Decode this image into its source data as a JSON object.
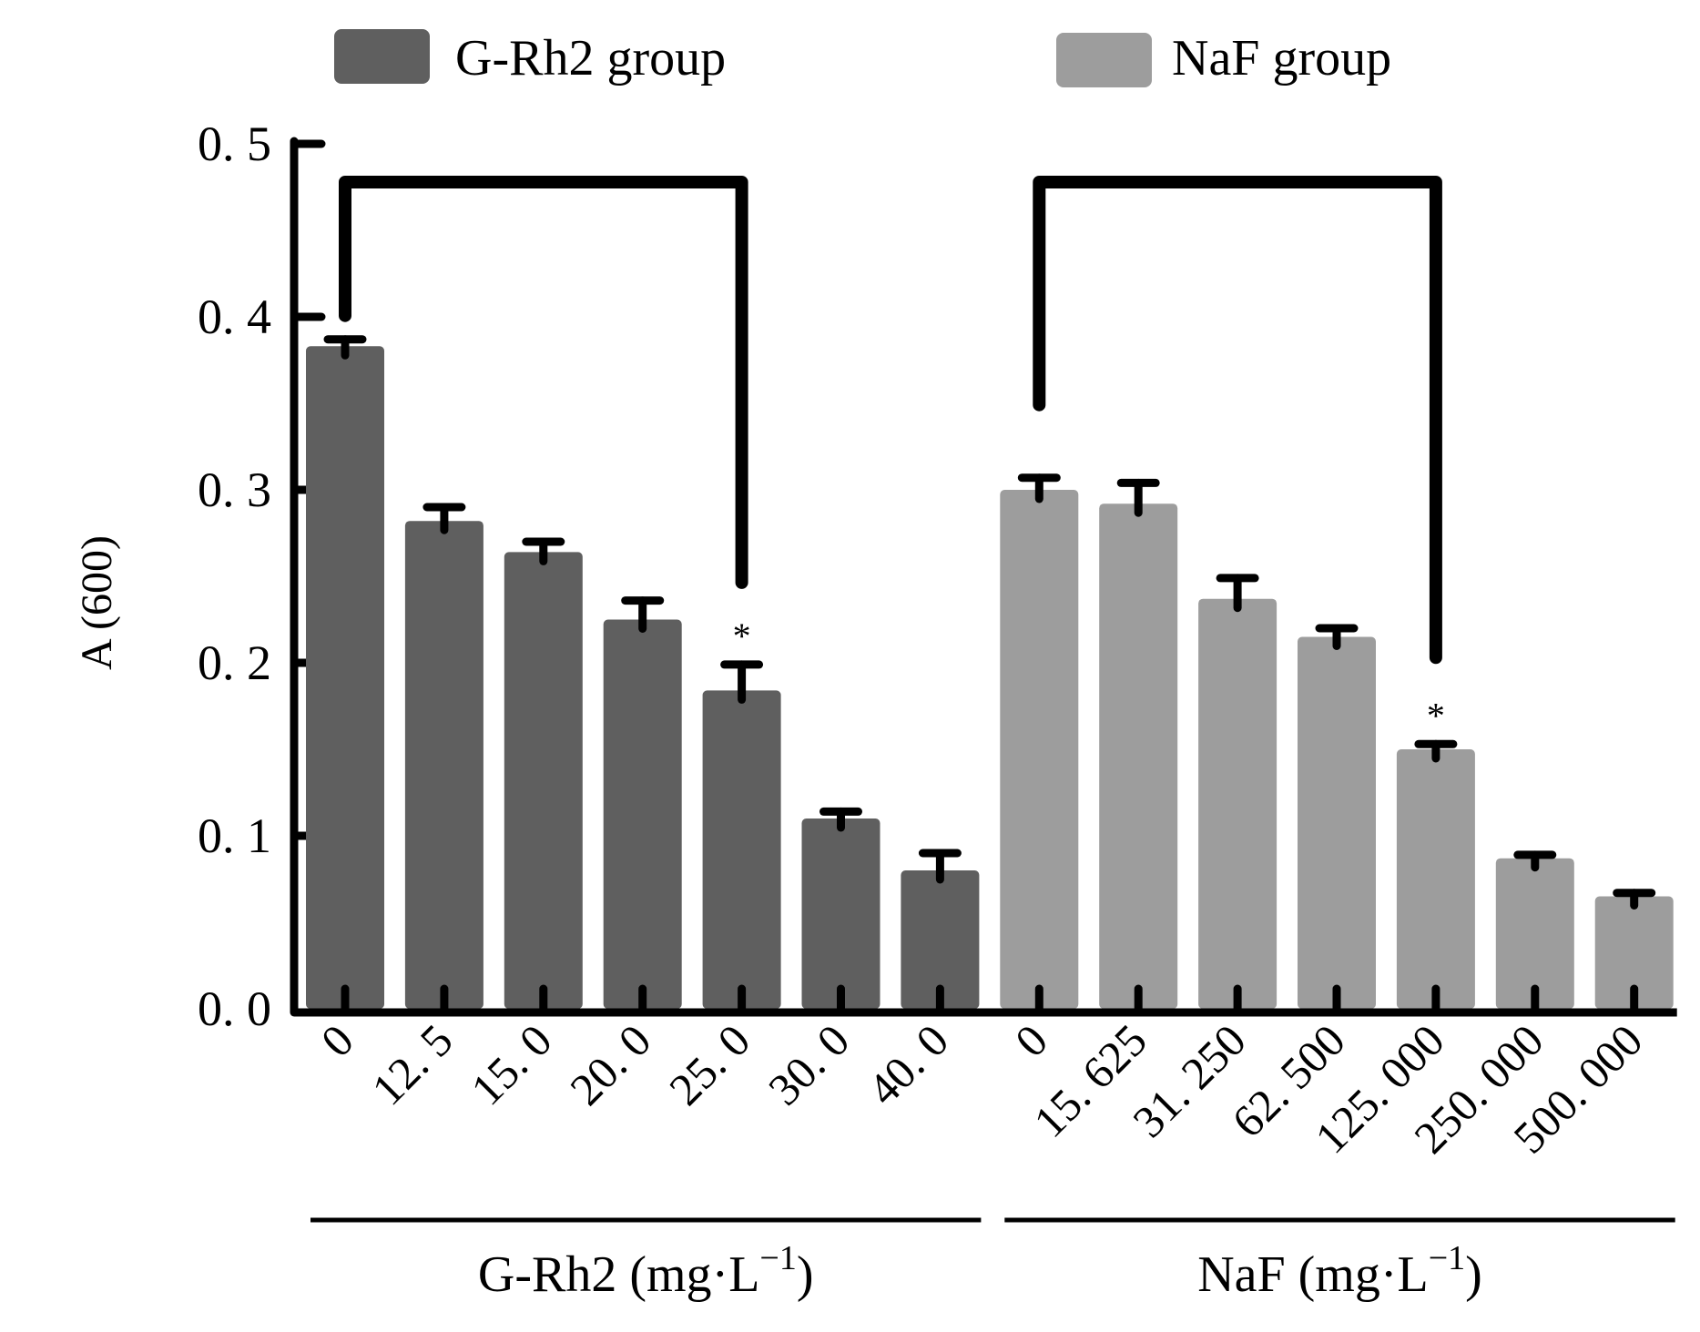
{
  "chart_data": {
    "type": "bar",
    "title": "",
    "ylabel": "A (600)",
    "ylim": [
      0,
      0.5
    ],
    "yticks": [
      0.0,
      0.1,
      0.2,
      0.3,
      0.4,
      0.5
    ],
    "ytick_labels": [
      "0. 0",
      "0. 1",
      "0. 2",
      "0. 3",
      "0. 4",
      "0. 5"
    ],
    "grid": false,
    "legend_position": "top",
    "legend": [
      {
        "label": "G-Rh2 group",
        "color": "#5f5f5f"
      },
      {
        "label": "NaF group",
        "color": "#9d9d9d"
      }
    ],
    "groups": [
      {
        "name": "G-Rh2 group",
        "xlabel": "G-Rh2 (mg·L",
        "xlabel_sup": "−1",
        "xlabel_close": ")",
        "color": "#5f5f5f",
        "categories": [
          "0",
          "12. 5",
          "15. 0",
          "20. 0",
          "25. 0",
          "30. 0",
          "40. 0"
        ],
        "values": [
          0.383,
          0.282,
          0.264,
          0.225,
          0.184,
          0.11,
          0.08
        ],
        "errors": [
          0.004,
          0.008,
          0.006,
          0.011,
          0.015,
          0.004,
          0.01
        ],
        "significance": [
          null,
          null,
          null,
          null,
          "*",
          null,
          null
        ],
        "comparison_bracket": {
          "from_index": 0,
          "to_index": 4
        }
      },
      {
        "name": "NaF group",
        "xlabel": "NaF (mg·L",
        "xlabel_sup": "−1",
        "xlabel_close": ")",
        "color": "#9d9d9d",
        "categories": [
          "0",
          "15. 625",
          "31. 250",
          "62. 500",
          "125. 000",
          "250. 000",
          "500. 000"
        ],
        "values": [
          0.3,
          0.292,
          0.237,
          0.215,
          0.15,
          0.087,
          0.065
        ],
        "errors": [
          0.007,
          0.012,
          0.012,
          0.005,
          0.003,
          0.002,
          0.002
        ],
        "significance": [
          null,
          null,
          null,
          null,
          "*",
          null,
          null
        ],
        "comparison_bracket": {
          "from_index": 0,
          "to_index": 4
        }
      }
    ]
  }
}
